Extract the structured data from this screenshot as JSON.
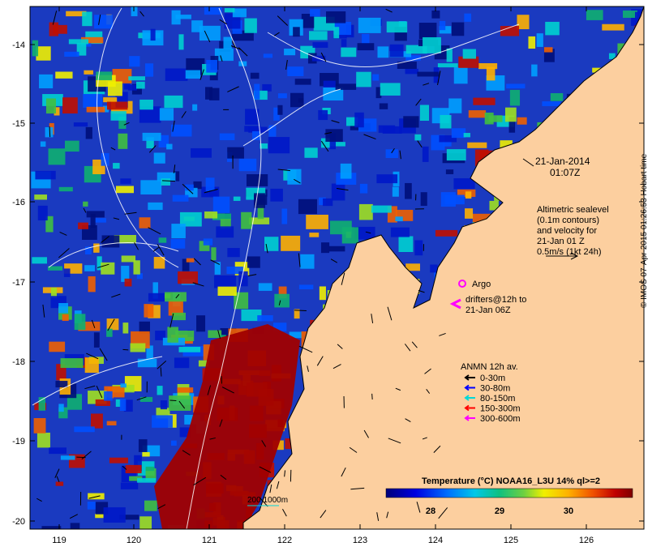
{
  "map": {
    "lon_ticks": [
      "119",
      "120",
      "121",
      "122",
      "123",
      "124",
      "125",
      "126"
    ],
    "lat_ticks": [
      "-14",
      "-15",
      "-16",
      "-17",
      "-18",
      "-19",
      "-20"
    ],
    "date_line1": "21-Jan-2014",
    "date_line2": "01:07Z",
    "altimetry": [
      "Altimetric sealevel",
      "(0.1m contours)",
      "and velocity for",
      "21-Jan 01 Z",
      "0.5m/s (1kt 24h)"
    ],
    "argo_label": "Argo",
    "drifters": [
      "drifters@12h to",
      "21-Jan 06Z"
    ],
    "anmn_title": "ANMN 12h av.",
    "anmn": [
      {
        "label": "0-30m",
        "color": "#000000"
      },
      {
        "label": "30-80m",
        "color": "#0000ff"
      },
      {
        "label": "80-150m",
        "color": "#00d8d8"
      },
      {
        "label": "150-300m",
        "color": "#ff0000"
      },
      {
        "label": "300-600m",
        "color": "#ff00ff"
      }
    ],
    "colorbar_title": "Temperature (°C) NOAA16_L3U 14% ql>=2",
    "colorbar_ticks": [
      "28",
      "29",
      "30"
    ],
    "depth_legend": "200  1000m",
    "credit": "© IMOS 07-Apr-2015 01:26:53 Hobart time",
    "colors": {
      "land": "#fccf9f",
      "ocean_deep": "#0a1a8c",
      "warm": "#a00000"
    }
  }
}
